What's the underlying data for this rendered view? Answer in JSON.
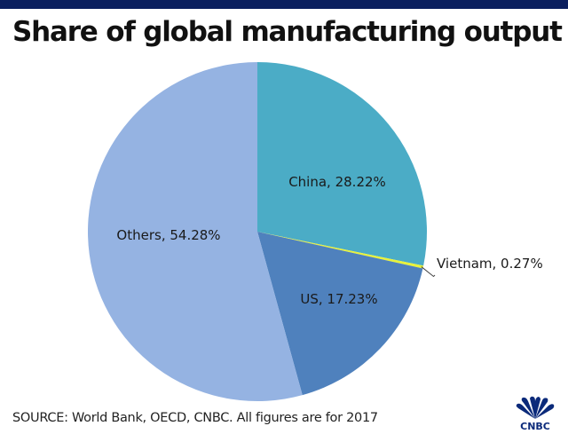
{
  "title": "Share of global manufacturing output",
  "source": "SOURCE: World Bank, OECD, CNBC. All figures are for 2017",
  "logo_text": "CNBC",
  "chart_data": {
    "type": "pie",
    "title": "Share of global manufacturing output",
    "start": "top, clockwise",
    "slices": [
      {
        "label": "China",
        "value": 28.22,
        "text": "China, 28.22%",
        "color": "#4bacc6"
      },
      {
        "label": "Vietnam",
        "value": 0.27,
        "text": "Vietnam, 0.27%",
        "color": "#e8f23a"
      },
      {
        "label": "US",
        "value": 17.23,
        "text": "US, 17.23%",
        "color": "#4f81bd"
      },
      {
        "label": "Others",
        "value": 54.28,
        "text": "Others, 54.28%",
        "color": "#95b3e2"
      }
    ]
  }
}
